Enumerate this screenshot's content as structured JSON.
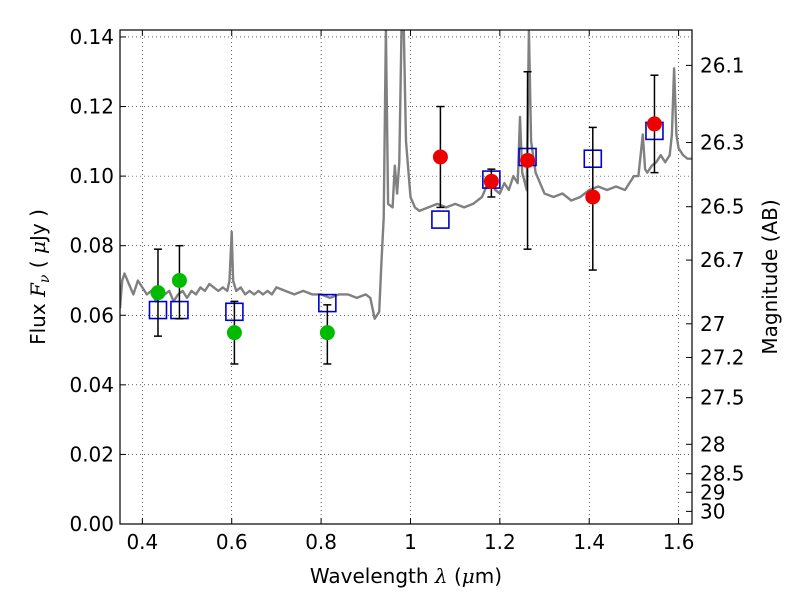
{
  "chart_data": {
    "type": "scatter",
    "xlabel": {
      "prefix": "Wavelength",
      "symbol": "λ",
      "unit_open": "(",
      "unit_mu": "μ",
      "unit_rest": "m)"
    },
    "ylabel": {
      "prefix": "Flux",
      "symbol": "F",
      "symbol_sub": "ν",
      "unit_open": "(",
      "unit_mu": "μ",
      "unit_rest": "Jy )"
    },
    "y2label": "Magnitude (AB)",
    "xlim": [
      0.35,
      1.63
    ],
    "ylim": [
      0.0,
      0.142
    ],
    "xticks": [
      {
        "value": 0.4,
        "label": "0.4"
      },
      {
        "value": 0.6,
        "label": "0.6"
      },
      {
        "value": 0.8,
        "label": "0.8"
      },
      {
        "value": 1.0,
        "label": "1"
      },
      {
        "value": 1.2,
        "label": "1.2"
      },
      {
        "value": 1.4,
        "label": "1.4"
      },
      {
        "value": 1.6,
        "label": "1.6"
      }
    ],
    "yticks": [
      {
        "value": 0.0,
        "label": "0.00"
      },
      {
        "value": 0.02,
        "label": "0.02"
      },
      {
        "value": 0.04,
        "label": "0.04"
      },
      {
        "value": 0.06,
        "label": "0.06"
      },
      {
        "value": 0.08,
        "label": "0.08"
      },
      {
        "value": 0.1,
        "label": "0.10"
      },
      {
        "value": 0.12,
        "label": "0.12"
      },
      {
        "value": 0.14,
        "label": "0.14"
      }
    ],
    "y2ticks": [
      {
        "mag": 26.1,
        "label": "26.1"
      },
      {
        "mag": 26.3,
        "label": "26.3"
      },
      {
        "mag": 26.5,
        "label": "26.5"
      },
      {
        "mag": 26.7,
        "label": "26.7"
      },
      {
        "mag": 27.0,
        "label": "27"
      },
      {
        "mag": 27.2,
        "label": "27.2"
      },
      {
        "mag": 27.5,
        "label": "27.5"
      },
      {
        "mag": 28.0,
        "label": "28"
      },
      {
        "mag": 28.5,
        "label": "28.5"
      },
      {
        "mag": 29.0,
        "label": "29"
      },
      {
        "mag": 30.0,
        "label": "30"
      }
    ],
    "grid": true,
    "colors": {
      "spectrum": "#808080",
      "green": "#00bb00",
      "red": "#ee0000",
      "model": "#0000cc",
      "errorbar": "#000000"
    },
    "series": [
      {
        "name": "model spectrum",
        "kind": "line",
        "points": [
          [
            0.35,
            0.062
          ],
          [
            0.355,
            0.07
          ],
          [
            0.36,
            0.072
          ],
          [
            0.37,
            0.069
          ],
          [
            0.38,
            0.066
          ],
          [
            0.39,
            0.07
          ],
          [
            0.4,
            0.068
          ],
          [
            0.41,
            0.066
          ],
          [
            0.42,
            0.067
          ],
          [
            0.43,
            0.064
          ],
          [
            0.44,
            0.067
          ],
          [
            0.45,
            0.066
          ],
          [
            0.46,
            0.067
          ],
          [
            0.47,
            0.064
          ],
          [
            0.48,
            0.066
          ],
          [
            0.49,
            0.067
          ],
          [
            0.5,
            0.065
          ],
          [
            0.51,
            0.067
          ],
          [
            0.52,
            0.066
          ],
          [
            0.53,
            0.068
          ],
          [
            0.54,
            0.067
          ],
          [
            0.55,
            0.069
          ],
          [
            0.56,
            0.068
          ],
          [
            0.57,
            0.067
          ],
          [
            0.58,
            0.068
          ],
          [
            0.59,
            0.067
          ],
          [
            0.595,
            0.07
          ],
          [
            0.6,
            0.084
          ],
          [
            0.603,
            0.07
          ],
          [
            0.61,
            0.067
          ],
          [
            0.62,
            0.068
          ],
          [
            0.63,
            0.066
          ],
          [
            0.64,
            0.067
          ],
          [
            0.65,
            0.066
          ],
          [
            0.66,
            0.067
          ],
          [
            0.67,
            0.066
          ],
          [
            0.68,
            0.067
          ],
          [
            0.69,
            0.066
          ],
          [
            0.7,
            0.068
          ],
          [
            0.72,
            0.067
          ],
          [
            0.74,
            0.066
          ],
          [
            0.76,
            0.067
          ],
          [
            0.78,
            0.066
          ],
          [
            0.8,
            0.066
          ],
          [
            0.82,
            0.065
          ],
          [
            0.84,
            0.066
          ],
          [
            0.86,
            0.066
          ],
          [
            0.88,
            0.065
          ],
          [
            0.9,
            0.066
          ],
          [
            0.91,
            0.065
          ],
          [
            0.92,
            0.059
          ],
          [
            0.93,
            0.061
          ],
          [
            0.935,
            0.075
          ],
          [
            0.94,
            0.088
          ],
          [
            0.945,
            0.142
          ],
          [
            0.95,
            0.092
          ],
          [
            0.96,
            0.091
          ],
          [
            0.965,
            0.103
          ],
          [
            0.97,
            0.095
          ],
          [
            0.975,
            0.104
          ],
          [
            0.98,
            0.142
          ],
          [
            0.985,
            0.142
          ],
          [
            0.99,
            0.11
          ],
          [
            1.0,
            0.094
          ],
          [
            1.01,
            0.091
          ],
          [
            1.02,
            0.09
          ],
          [
            1.04,
            0.091
          ],
          [
            1.06,
            0.092
          ],
          [
            1.08,
            0.091
          ],
          [
            1.1,
            0.092
          ],
          [
            1.12,
            0.091
          ],
          [
            1.14,
            0.092
          ],
          [
            1.16,
            0.094
          ],
          [
            1.17,
            0.097
          ],
          [
            1.18,
            0.098
          ],
          [
            1.19,
            0.096
          ],
          [
            1.2,
            0.095
          ],
          [
            1.21,
            0.098
          ],
          [
            1.22,
            0.096
          ],
          [
            1.23,
            0.1
          ],
          [
            1.24,
            0.098
          ],
          [
            1.245,
            0.117
          ],
          [
            1.25,
            0.101
          ],
          [
            1.26,
            0.096
          ],
          [
            1.265,
            0.142
          ],
          [
            1.27,
            0.11
          ],
          [
            1.28,
            0.101
          ],
          [
            1.29,
            0.098
          ],
          [
            1.3,
            0.095
          ],
          [
            1.32,
            0.094
          ],
          [
            1.34,
            0.095
          ],
          [
            1.36,
            0.093
          ],
          [
            1.38,
            0.094
          ],
          [
            1.4,
            0.096
          ],
          [
            1.42,
            0.097
          ],
          [
            1.44,
            0.096
          ],
          [
            1.46,
            0.097
          ],
          [
            1.48,
            0.096
          ],
          [
            1.5,
            0.1
          ],
          [
            1.51,
            0.1
          ],
          [
            1.52,
            0.112
          ],
          [
            1.525,
            0.102
          ],
          [
            1.53,
            0.101
          ],
          [
            1.54,
            0.103
          ],
          [
            1.55,
            0.104
          ],
          [
            1.56,
            0.106
          ],
          [
            1.57,
            0.104
          ],
          [
            1.58,
            0.106
          ],
          [
            1.585,
            0.112
          ],
          [
            1.59,
            0.131
          ],
          [
            1.595,
            0.112
          ],
          [
            1.6,
            0.108
          ],
          [
            1.61,
            0.106
          ],
          [
            1.62,
            0.105
          ],
          [
            1.63,
            0.105
          ]
        ]
      },
      {
        "name": "observed (green)",
        "kind": "point",
        "points": [
          {
            "x": 0.435,
            "y": 0.0665,
            "lo": 0.054,
            "hi": 0.079
          },
          {
            "x": 0.483,
            "y": 0.07,
            "lo": 0.059,
            "hi": 0.08
          },
          {
            "x": 0.606,
            "y": 0.055,
            "lo": 0.046,
            "hi": 0.064
          },
          {
            "x": 0.814,
            "y": 0.055,
            "lo": 0.046,
            "hi": 0.063
          }
        ]
      },
      {
        "name": "observed (red)",
        "kind": "point",
        "points": [
          {
            "x": 1.067,
            "y": 0.1055,
            "lo": 0.091,
            "hi": 0.12
          },
          {
            "x": 1.181,
            "y": 0.0985,
            "lo": 0.094,
            "hi": 0.102
          },
          {
            "x": 1.262,
            "y": 0.1045,
            "lo": 0.079,
            "hi": 0.13
          },
          {
            "x": 1.408,
            "y": 0.094,
            "lo": 0.073,
            "hi": 0.114
          },
          {
            "x": 1.546,
            "y": 0.115,
            "lo": 0.101,
            "hi": 0.129
          }
        ]
      },
      {
        "name": "model photometry",
        "kind": "square",
        "points": [
          {
            "x": 0.435,
            "y": 0.0615
          },
          {
            "x": 0.483,
            "y": 0.0615
          },
          {
            "x": 0.606,
            "y": 0.061
          },
          {
            "x": 0.814,
            "y": 0.0635
          },
          {
            "x": 1.067,
            "y": 0.0875
          },
          {
            "x": 1.181,
            "y": 0.099
          },
          {
            "x": 1.262,
            "y": 0.1055
          },
          {
            "x": 1.408,
            "y": 0.105
          },
          {
            "x": 1.546,
            "y": 0.113
          }
        ]
      }
    ]
  }
}
